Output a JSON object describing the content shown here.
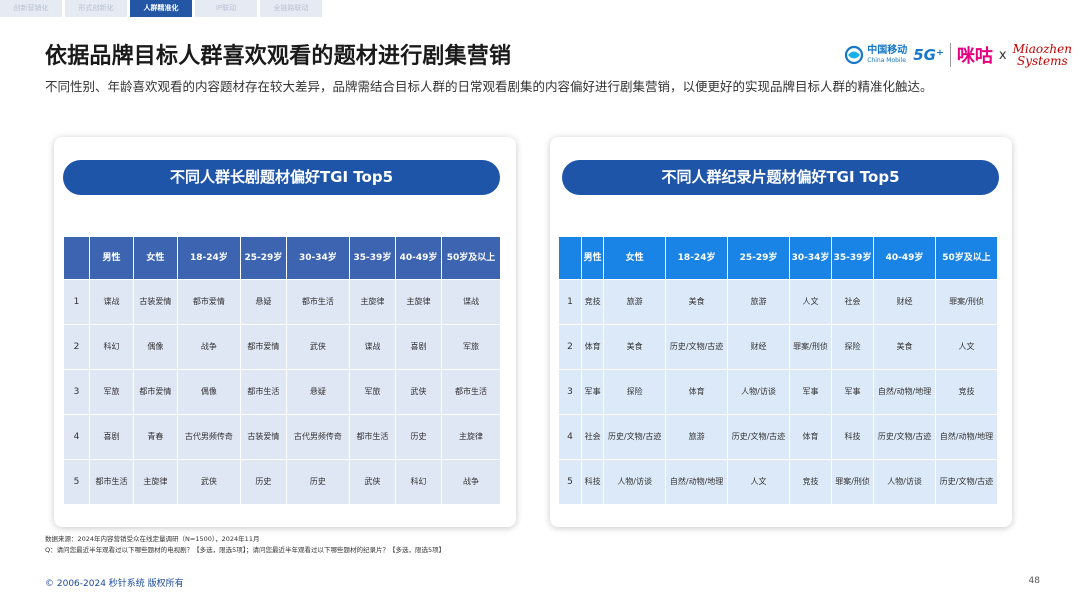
{
  "nav": {
    "tabs": [
      {
        "label": "创新营销化"
      },
      {
        "label": "形式创新化"
      },
      {
        "label": "人群精准化"
      },
      {
        "label": "IP联动"
      },
      {
        "label": "全链路联动"
      }
    ]
  },
  "title": "依据品牌目标人群喜欢观看的题材进行剧集营销",
  "subtitle": "不同性别、年龄喜欢观看的内容题材存在较大差异，品牌需结合目标人群的日常观看剧集的内容偏好进行剧集营销，以便更好的实现品牌目标人群的精准化触达。",
  "logos": {
    "china_mobile_zh": "中国移动",
    "china_mobile_en": "China Mobile",
    "five_g": "5G⁺",
    "migu": "咪咕",
    "cross": "x",
    "miaozhen_line1": "Miaozhen",
    "miaozhen_line2": "Systems"
  },
  "left_table": {
    "title": "不同人群长剧题材偏好TGI Top5",
    "headers": [
      "",
      "男性",
      "女性",
      "18-24岁",
      "25-29岁",
      "30-34岁",
      "35-39岁",
      "40-49岁",
      "50岁及以上"
    ],
    "rows": [
      [
        "1",
        "谍战",
        "古装爱情",
        "都市爱情",
        "悬疑",
        "都市生活",
        "主旋律",
        "主旋律",
        "谍战"
      ],
      [
        "2",
        "科幻",
        "偶像",
        "战争",
        "都市爱情",
        "武侠",
        "谍战",
        "喜剧",
        "军旅"
      ],
      [
        "3",
        "军旅",
        "都市爱情",
        "偶像",
        "都市生活",
        "悬疑",
        "军旅",
        "武侠",
        "都市生活"
      ],
      [
        "4",
        "喜剧",
        "青春",
        "古代男频传奇",
        "古装爱情",
        "古代男频传奇",
        "都市生活",
        "历史",
        "主旋律"
      ],
      [
        "5",
        "都市生活",
        "主旋律",
        "武侠",
        "历史",
        "历史",
        "武侠",
        "科幻",
        "战争"
      ]
    ]
  },
  "right_table": {
    "title": "不同人群纪录片题材偏好TGI Top5",
    "headers": [
      "",
      "男性",
      "女性",
      "18-24岁",
      "25-29岁",
      "30-34岁",
      "35-39岁",
      "40-49岁",
      "50岁及以上"
    ],
    "rows": [
      [
        "1",
        "竞技",
        "旅游",
        "美食",
        "旅游",
        "人文",
        "社会",
        "财经",
        "罪案/刑侦"
      ],
      [
        "2",
        "体育",
        "美食",
        "历史/文物/古迹",
        "财经",
        "罪案/刑侦",
        "探险",
        "美食",
        "人文"
      ],
      [
        "3",
        "军事",
        "探险",
        "体育",
        "人物/访谈",
        "军事",
        "军事",
        "自然/动物/地理",
        "竞技"
      ],
      [
        "4",
        "社会",
        "历史/文物/古迹",
        "旅游",
        "历史/文物/古迹",
        "体育",
        "科技",
        "历史/文物/古迹",
        "自然/动物/地理"
      ],
      [
        "5",
        "科技",
        "人物/访谈",
        "自然/动物/地理",
        "人文",
        "竞技",
        "罪案/刑侦",
        "人物/访谈",
        "历史/文物/古迹"
      ]
    ]
  },
  "source_line1": "数据来源：2024年内容营销受众在线定量调研（N=1500），2024年11月",
  "source_line2": "Q：请问您最近半年观看过以下哪些题材的电视剧？【多选，限选5项】；请问您最近半年观看过以下哪些题材的纪录片？【多选，限选5项】",
  "footer": "© 2006-2024 秒针系统 版权所有",
  "page_number": "48"
}
